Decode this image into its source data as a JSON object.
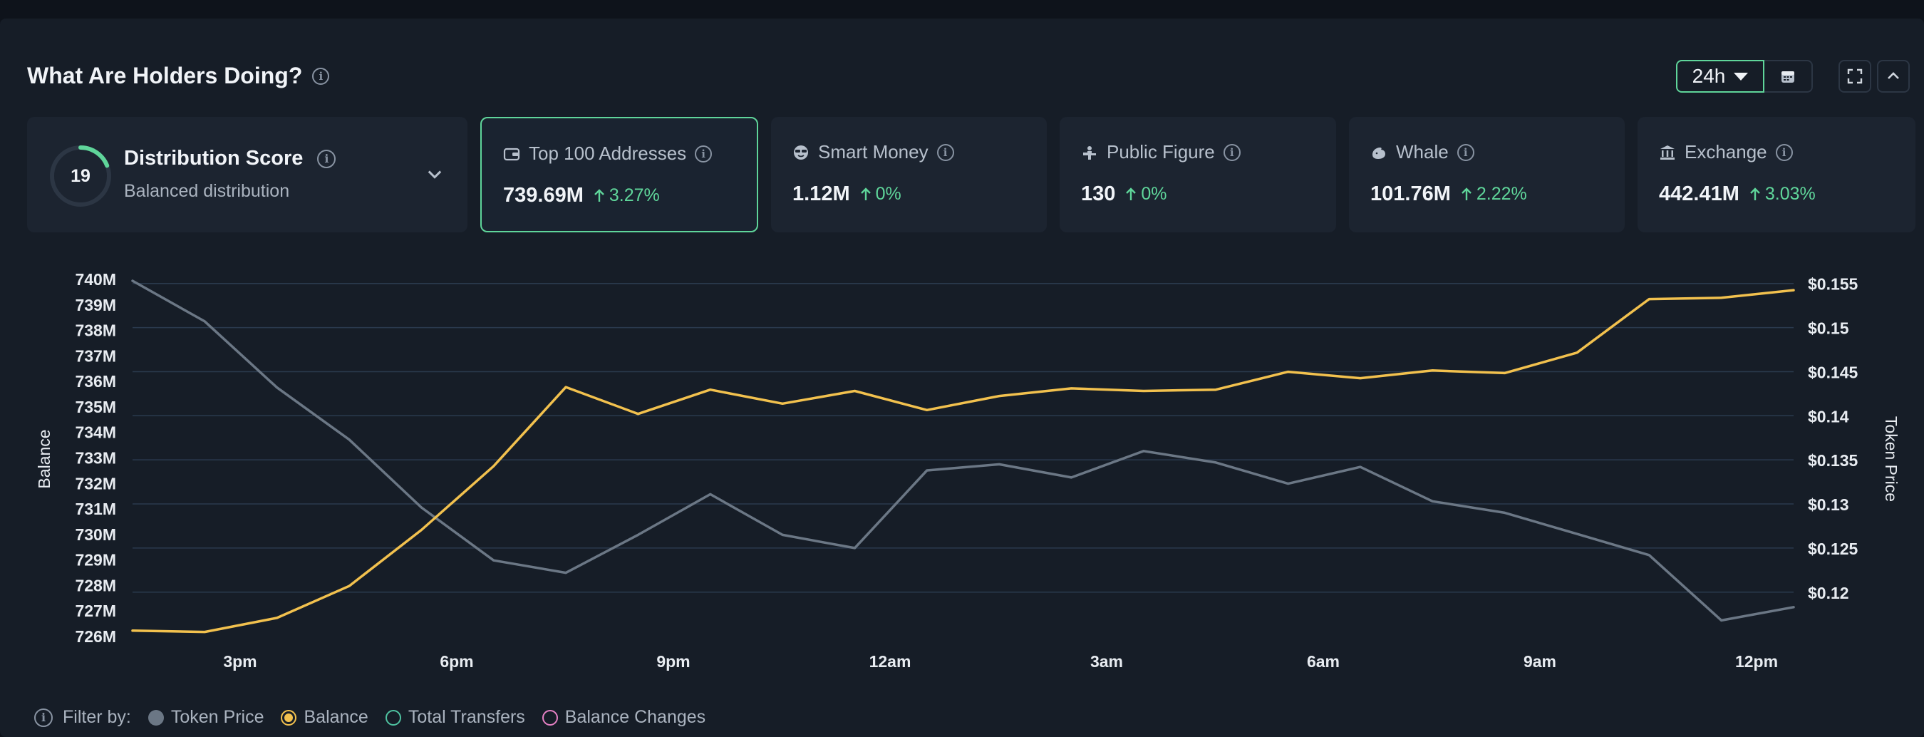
{
  "header": {
    "title": "What Are Holders Doing?",
    "range": "24h"
  },
  "distribution": {
    "score": "19",
    "score_fraction": 0.19,
    "title": "Distribution Score",
    "subtitle": "Balanced distribution"
  },
  "cards": [
    {
      "label": "Top 100 Addresses",
      "value": "739.69M",
      "change": "3.27%",
      "icon": "wallet-icon",
      "selected": true
    },
    {
      "label": "Smart Money",
      "value": "1.12M",
      "change": "0%",
      "icon": "sunglasses-icon",
      "selected": false
    },
    {
      "label": "Public Figure",
      "value": "130",
      "change": "0%",
      "icon": "podium-icon",
      "selected": false
    },
    {
      "label": "Whale",
      "value": "101.76M",
      "change": "2.22%",
      "icon": "whale-icon",
      "selected": false
    },
    {
      "label": "Exchange",
      "value": "442.41M",
      "change": "3.03%",
      "icon": "bank-icon",
      "selected": false
    }
  ],
  "filter": {
    "label": "Filter by:",
    "items": [
      {
        "label": "Token Price",
        "color": "#6b7785",
        "style": "filled"
      },
      {
        "label": "Balance",
        "color": "#f2c14e",
        "style": "ring-filled"
      },
      {
        "label": "Total Transfers",
        "color": "#4fc3a1",
        "style": "ring"
      },
      {
        "label": "Balance Changes",
        "color": "#e580c4",
        "style": "ring"
      }
    ]
  },
  "chart_data": {
    "type": "line",
    "xlabel": "",
    "ylabel": "Balance",
    "y2label": "Token Price",
    "x_ticks": [
      "3pm",
      "6pm",
      "9pm",
      "12am",
      "3am",
      "6am",
      "9am",
      "12pm"
    ],
    "y_ticks": [
      "740M",
      "739M",
      "738M",
      "737M",
      "736M",
      "735M",
      "734M",
      "733M",
      "732M",
      "731M",
      "730M",
      "729M",
      "728M",
      "727M",
      "726M"
    ],
    "y2_ticks": [
      "$0.155",
      "$0.15",
      "$0.145",
      "$0.14",
      "$0.135",
      "$0.13",
      "$0.125",
      "$0.12"
    ],
    "ylim": [
      726,
      740
    ],
    "y2lim": [
      0.1178,
      0.1553
    ],
    "grid": true,
    "series": [
      {
        "name": "Balance",
        "axis": "left",
        "color": "#f2c14e",
        "values": [
          726.2,
          726.15,
          726.7,
          727.95,
          730.15,
          732.65,
          735.75,
          734.7,
          735.65,
          735.1,
          735.6,
          734.85,
          735.4,
          735.7,
          735.6,
          735.65,
          736.35,
          736.1,
          736.4,
          736.3,
          737.1,
          739.2,
          739.25,
          739.55
        ]
      },
      {
        "name": "Token Price",
        "axis": "right",
        "color": "#6b7785",
        "values": [
          0.1553,
          0.1507,
          0.1432,
          0.1373,
          0.1296,
          0.1236,
          0.1222,
          0.1265,
          0.1311,
          0.1265,
          0.125,
          0.1338,
          0.1345,
          0.133,
          0.136,
          0.1347,
          0.1323,
          0.1342,
          0.1303,
          0.129,
          0.1266,
          0.1242,
          0.1168,
          0.1183
        ]
      }
    ]
  }
}
